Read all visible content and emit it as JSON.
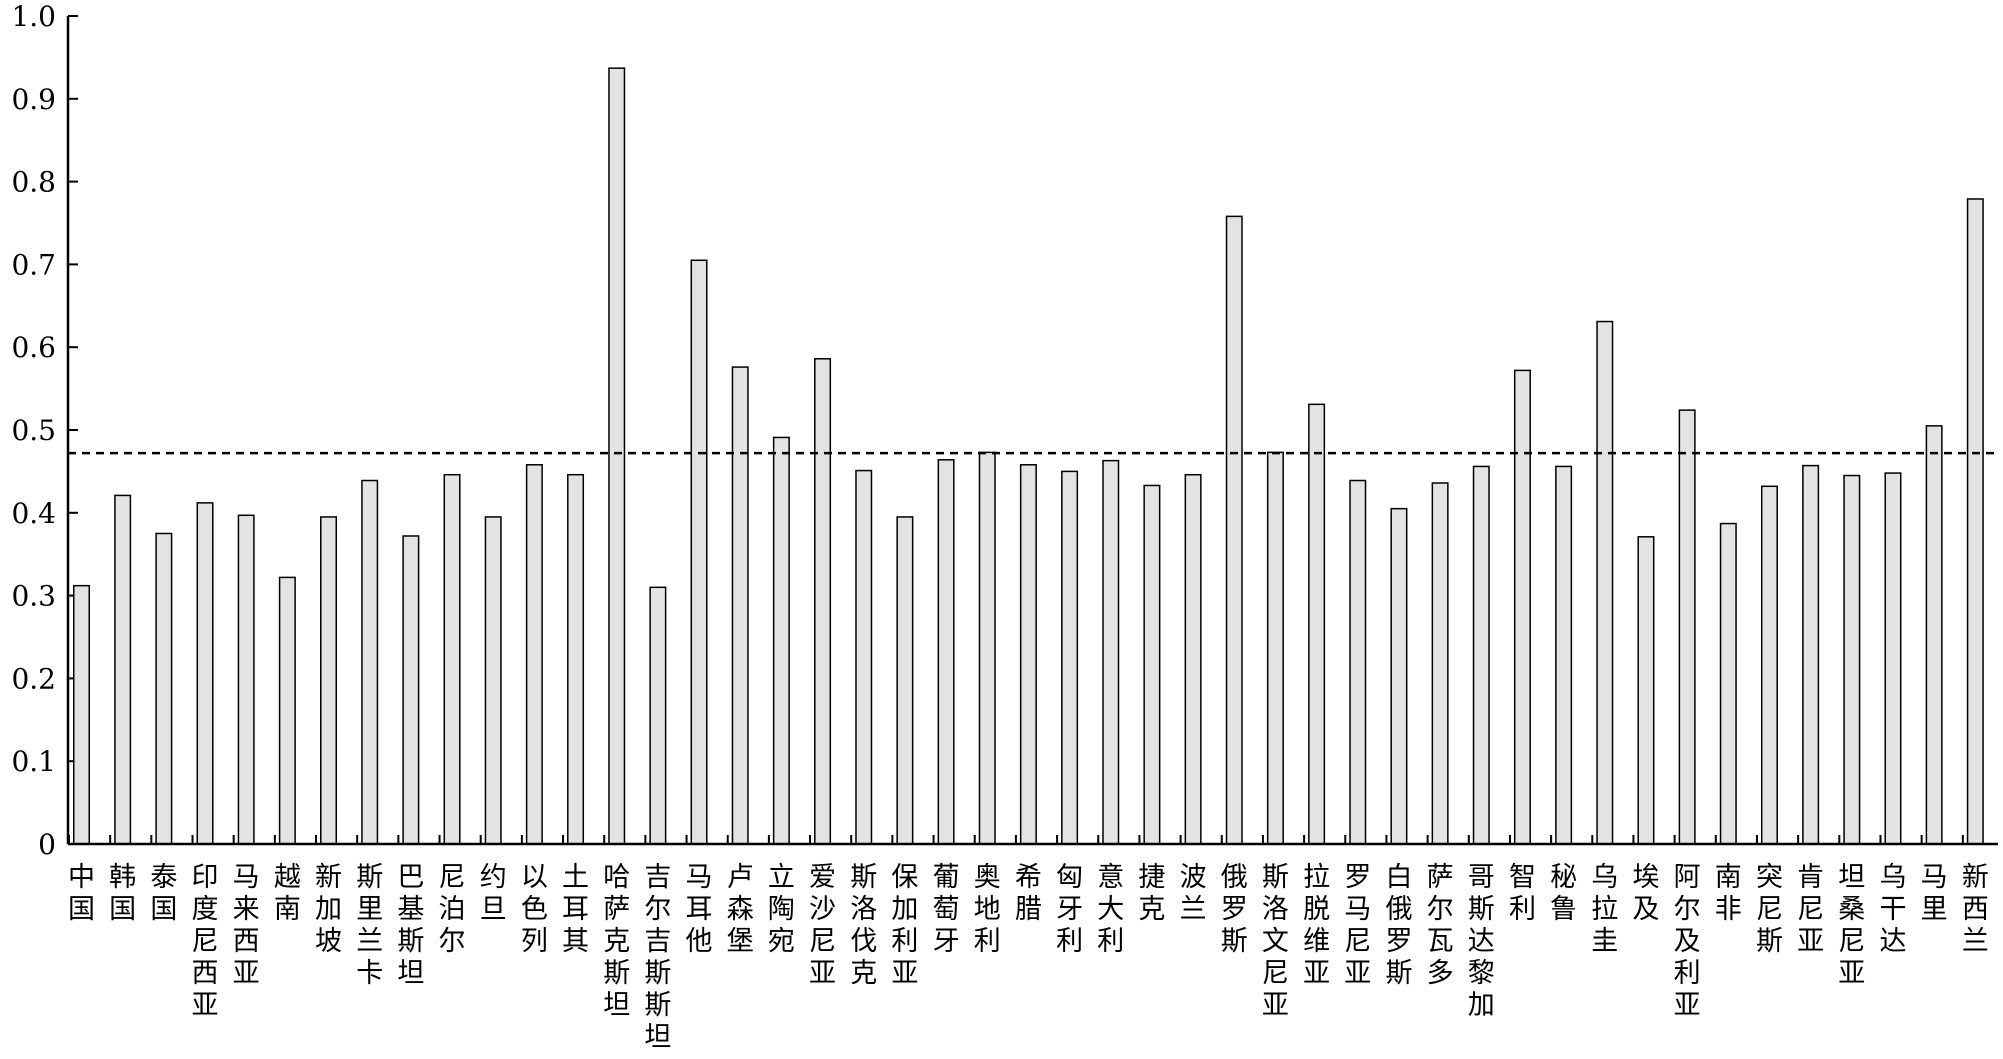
{
  "chart_data": {
    "type": "bar",
    "title": "",
    "xlabel": "",
    "ylabel": "",
    "ylim": [
      0,
      1.0
    ],
    "yticks": [
      "0",
      "0.1",
      "0.2",
      "0.3",
      "0.4",
      "0.5",
      "0.6",
      "0.7",
      "0.8",
      "0.9",
      "1.0"
    ],
    "grid": false,
    "bar_color": "#e3e3e3",
    "bar_edge_color": "#000000",
    "reference_line": {
      "value": 0.472,
      "style": "dashed"
    },
    "categories": [
      "中国",
      "韩国",
      "泰国",
      "印度尼西亚",
      "马来西亚",
      "越南",
      "新加坡",
      "斯里兰卡",
      "巴基斯坦",
      "尼泊尔",
      "约旦",
      "以色列",
      "土耳其",
      "哈萨克斯坦",
      "吉尔吉斯斯坦",
      "马耳他",
      "卢森堡",
      "立陶宛",
      "爱沙尼亚",
      "斯洛伐克",
      "保加利亚",
      "葡萄牙",
      "奥地利",
      "希腊",
      "匈牙利",
      "意大利",
      "捷克",
      "波兰",
      "俄罗斯",
      "斯洛文尼亚",
      "拉脱维亚",
      "罗马尼亚",
      "白俄罗斯",
      "萨尔瓦多",
      "哥斯达黎加",
      "智利",
      "秘鲁",
      "乌拉圭",
      "埃及",
      "阿尔及利亚",
      "南非",
      "突尼斯",
      "肯尼亚",
      "坦桑尼亚",
      "乌干达",
      "马里",
      "新西兰"
    ],
    "values": [
      0.312,
      0.421,
      0.375,
      0.412,
      0.397,
      0.322,
      0.395,
      0.439,
      0.372,
      0.446,
      0.395,
      0.458,
      0.446,
      0.937,
      0.31,
      0.705,
      0.576,
      0.491,
      0.586,
      0.451,
      0.395,
      0.464,
      0.473,
      0.458,
      0.45,
      0.463,
      0.433,
      0.446,
      0.758,
      0.473,
      0.531,
      0.439,
      0.405,
      0.436,
      0.456,
      0.572,
      0.456,
      0.631,
      0.371,
      0.524,
      0.387,
      0.432,
      0.457,
      0.445,
      0.448,
      0.505,
      0.779
    ]
  }
}
